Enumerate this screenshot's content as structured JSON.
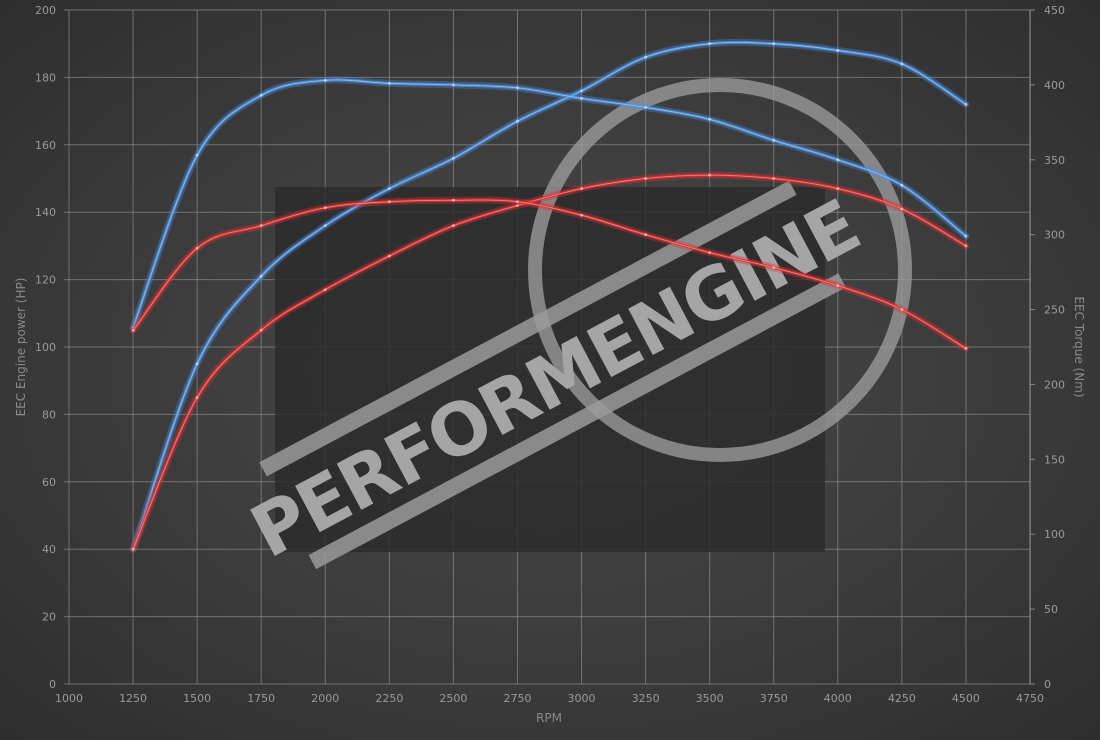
{
  "chart_data": {
    "type": "line",
    "title": "",
    "xlabel": "RPM",
    "ylabel_left": "EEC Engine power (HP)",
    "ylabel_right": "EEC Torque (Nm)",
    "xlim": [
      1000,
      4750
    ],
    "ylim_left": [
      0,
      200
    ],
    "ylim_right": [
      0,
      450
    ],
    "x_ticks": [
      1000,
      1250,
      1500,
      1750,
      2000,
      2250,
      2500,
      2750,
      3000,
      3250,
      3500,
      3750,
      4000,
      4250,
      4500,
      4750
    ],
    "y_left_ticks": [
      0,
      20,
      40,
      60,
      80,
      100,
      120,
      140,
      160,
      180,
      200
    ],
    "y_right_ticks": [
      0,
      50,
      100,
      150,
      200,
      250,
      300,
      350,
      400,
      450
    ],
    "grid": true,
    "legend": "none",
    "watermark": "PERFORMENGINE",
    "x": [
      1250,
      1500,
      1750,
      2000,
      2250,
      2500,
      2750,
      3000,
      3250,
      3500,
      3750,
      4000,
      4250,
      4500
    ],
    "series": [
      {
        "axis": "left",
        "color": "#4a8fe0",
        "values": [
          40,
          95,
          121,
          136,
          147,
          156,
          167,
          176,
          186,
          190,
          190,
          188,
          184,
          172
        ]
      },
      {
        "axis": "right",
        "color": "#4a8fe0",
        "values": [
          238,
          353,
          393,
          403,
          401,
          400,
          398,
          391,
          385,
          377,
          363,
          350,
          333,
          299
        ]
      },
      {
        "axis": "left",
        "color": "#e03030",
        "values": [
          40,
          85,
          105,
          117,
          127,
          136,
          142,
          147,
          150,
          151,
          150,
          147,
          141,
          130
        ]
      },
      {
        "axis": "right",
        "color": "#e03030",
        "values": [
          236,
          291,
          306,
          318,
          322,
          323,
          322,
          313,
          300,
          288,
          278,
          266,
          250,
          224
        ]
      }
    ]
  }
}
